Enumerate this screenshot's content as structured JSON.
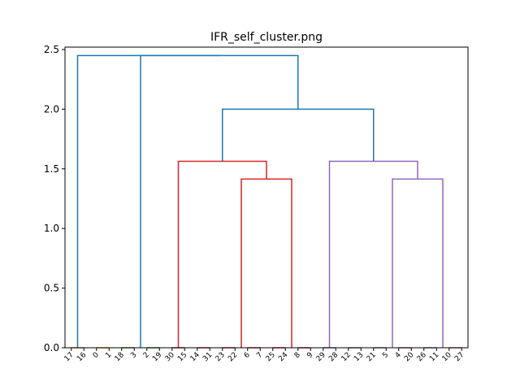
{
  "chart_data": {
    "type": "dendrogram",
    "title": "IFR_self_cluster.png",
    "xlabel": "",
    "ylabel": "",
    "ylim": [
      0,
      2.5
    ],
    "yticks": [
      "0.0",
      "0.5",
      "1.0",
      "1.5",
      "2.0",
      "2.5"
    ],
    "leaf_order": [
      "17",
      "16",
      "0",
      "1",
      "18",
      "3",
      "2",
      "19",
      "30",
      "15",
      "14",
      "31",
      "23",
      "22",
      "6",
      "7",
      "25",
      "24",
      "8",
      "9",
      "29",
      "28",
      "12",
      "13",
      "21",
      "5",
      "4",
      "20",
      "26",
      "11",
      "10",
      "27"
    ],
    "colors": {
      "default": "#1f77b4",
      "orange": "#ff7f0e",
      "green": "#2ca02c",
      "red": "#d62728",
      "purple": "#9467bd"
    },
    "links": [
      {
        "left": [
          0,
          0
        ],
        "right": [
          1,
          0
        ],
        "height": 0,
        "color": "orange"
      },
      {
        "left": [
          2,
          0
        ],
        "right": [
          3,
          0
        ],
        "height": 0,
        "color": "orange"
      },
      {
        "left": [
          4,
          0
        ],
        "right": [
          5,
          0
        ],
        "height": 0,
        "color": "green"
      },
      {
        "left": [
          6,
          0
        ],
        "right": [
          7,
          0
        ],
        "height": 0,
        "color": "green"
      },
      {
        "left": [
          8,
          0
        ],
        "right": [
          9,
          0
        ],
        "height": 0,
        "color": "red"
      },
      {
        "left": [
          10,
          0
        ],
        "right": [
          11,
          0
        ],
        "height": 0,
        "color": "red"
      },
      {
        "left": [
          12,
          0
        ],
        "right": [
          13,
          0
        ],
        "height": 0,
        "color": "red"
      },
      {
        "left": [
          14,
          0
        ],
        "right": [
          15,
          0
        ],
        "height": 0,
        "color": "red"
      },
      {
        "left": [
          16,
          0
        ],
        "right": [
          17,
          0
        ],
        "height": 0,
        "color": "red"
      },
      {
        "left": [
          18,
          0
        ],
        "right": [
          19,
          0
        ],
        "height": 0,
        "color": "red"
      },
      {
        "left": [
          20,
          0
        ],
        "right": [
          21,
          0
        ],
        "height": 0,
        "color": "purple"
      },
      {
        "left": [
          22,
          0
        ],
        "right": [
          23,
          0
        ],
        "height": 0,
        "color": "purple"
      },
      {
        "left": [
          24,
          0
        ],
        "right": [
          25,
          0
        ],
        "height": 0,
        "color": "purple"
      },
      {
        "left": [
          26,
          0
        ],
        "right": [
          27,
          0
        ],
        "height": 0,
        "color": "purple"
      },
      {
        "left": [
          28,
          0
        ],
        "right": [
          29,
          0
        ],
        "height": 0,
        "color": "purple"
      },
      {
        "left": [
          30,
          0
        ],
        "right": [
          31,
          0
        ],
        "height": 0,
        "color": "purple"
      },
      {
        "left": [
          13.5,
          0
        ],
        "right": [
          17.5,
          0
        ],
        "height": 1.414,
        "color": "red"
      },
      {
        "left": [
          8.5,
          0
        ],
        "right": [
          15.5,
          1.414
        ],
        "height": 1.563,
        "color": "red"
      },
      {
        "left": [
          25.5,
          0
        ],
        "right": [
          29.5,
          0
        ],
        "height": 1.414,
        "color": "purple"
      },
      {
        "left": [
          20.5,
          0
        ],
        "right": [
          27.5,
          1.414
        ],
        "height": 1.563,
        "color": "purple"
      },
      {
        "left": [
          12,
          1.563
        ],
        "right": [
          24,
          1.563
        ],
        "height": 2.0,
        "color": "default"
      },
      {
        "left": [
          5.5,
          0
        ],
        "right": [
          18,
          2.0
        ],
        "height": 2.449,
        "color": "default"
      },
      {
        "left": [
          0.5,
          0
        ],
        "right": [
          11.75,
          2.449
        ],
        "height": 2.449,
        "color": "default"
      }
    ]
  }
}
